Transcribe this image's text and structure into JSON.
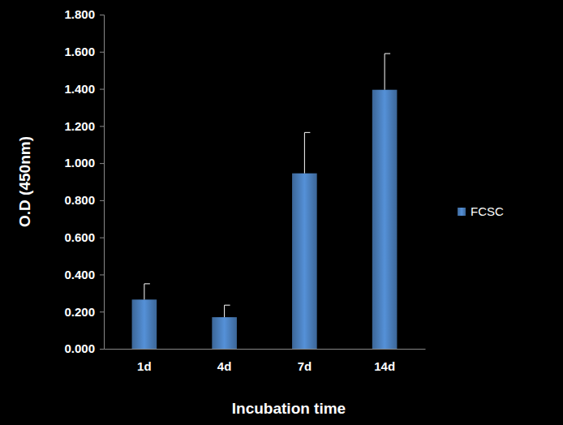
{
  "chart_data": {
    "type": "bar",
    "x_label": "Incubation time",
    "y_label": "O.D (450nm)",
    "categories": [
      "1d",
      "4d",
      "7d",
      "14d"
    ],
    "series": [
      {
        "name": "FCSC",
        "color": "#4a7ebb",
        "values": [
          0.265,
          0.17,
          0.945,
          1.395
        ],
        "errors": [
          0.085,
          0.065,
          0.22,
          0.195
        ]
      }
    ],
    "ylim": [
      0,
      1.8
    ],
    "yticks": [
      {
        "value": 0,
        "label": "0.000"
      },
      {
        "value": 0.2,
        "label": "0.200"
      },
      {
        "value": 0.4,
        "label": "0.400"
      },
      {
        "value": 0.6,
        "label": "0.600"
      },
      {
        "value": 0.8,
        "label": "0.800"
      },
      {
        "value": 1.0,
        "label": "1.000"
      },
      {
        "value": 1.2,
        "label": "1.200"
      },
      {
        "value": 1.4,
        "label": "1.400"
      },
      {
        "value": 1.6,
        "label": "1.600"
      },
      {
        "value": 1.8,
        "label": "1.800"
      }
    ],
    "grid": false,
    "legend": "right"
  }
}
